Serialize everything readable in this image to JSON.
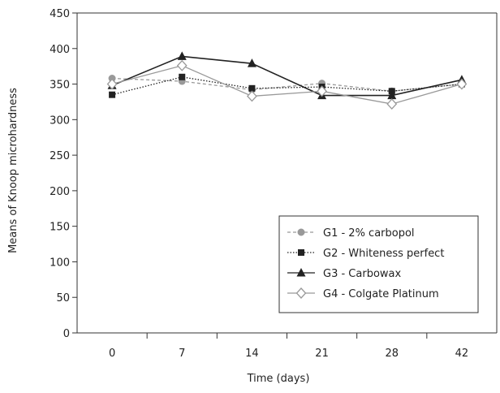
{
  "chart_data": {
    "type": "line",
    "xlabel": "Time (days)",
    "ylabel": "Means of Knoop microhardness",
    "categories": [
      "0",
      "7",
      "14",
      "21",
      "28",
      "42"
    ],
    "ylim": [
      0,
      450
    ],
    "yticks": [
      0,
      50,
      100,
      150,
      200,
      250,
      300,
      350,
      400,
      450
    ],
    "grid": false,
    "legend_position": "bottom-right",
    "series": [
      {
        "name": "G1 - 2% carbopol",
        "values": [
          358,
          354,
          342,
          351,
          340,
          350
        ],
        "color": "#999999",
        "marker": "circle",
        "line": "dashed"
      },
      {
        "name": "G2 - Whiteness perfect",
        "values": [
          335,
          360,
          344,
          346,
          340,
          350
        ],
        "color": "#222222",
        "marker": "square",
        "line": "dotted"
      },
      {
        "name": "G3 - Carbowax",
        "values": [
          348,
          389,
          379,
          334,
          334,
          356
        ],
        "color": "#222222",
        "marker": "triangle",
        "line": "solid"
      },
      {
        "name": "G4 - Colgate Platinum",
        "values": [
          350,
          376,
          333,
          340,
          322,
          350
        ],
        "color": "#999999",
        "marker": "diamond-open",
        "line": "solid"
      }
    ]
  }
}
